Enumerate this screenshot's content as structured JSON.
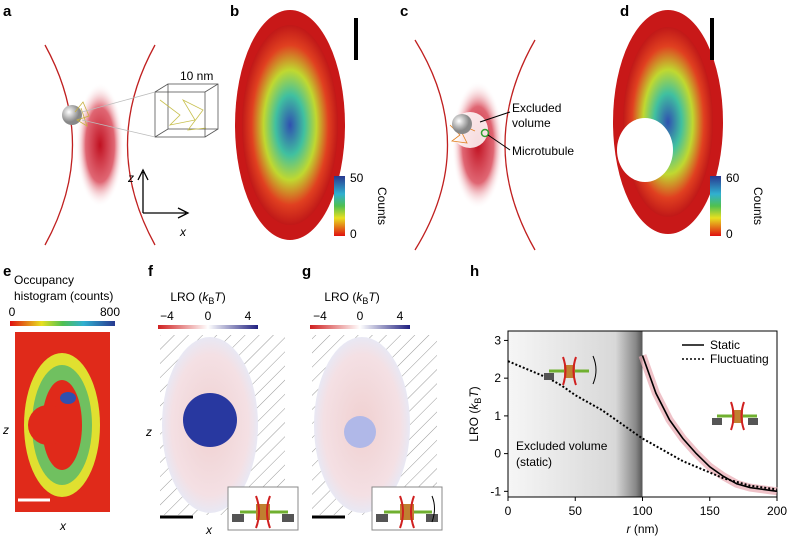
{
  "panels": {
    "a": {
      "label": "a",
      "scale": "10 nm",
      "z": "z",
      "x": "x"
    },
    "b": {
      "label": "b",
      "colorbar": [
        "50",
        "0"
      ],
      "colorbar_title": "Counts"
    },
    "c": {
      "label": "c",
      "excluded": [
        "Excluded",
        "volume"
      ],
      "microtubule": "Microtubule"
    },
    "d": {
      "label": "d",
      "colorbar": [
        "60",
        "0"
      ],
      "colorbar_title": "Counts"
    },
    "e": {
      "label": "e",
      "title": [
        "Occupancy",
        "histogram (counts)"
      ],
      "colorbar": [
        "0",
        "800"
      ],
      "z": "z",
      "x": "x"
    },
    "f": {
      "label": "f",
      "title": [
        "LRO (",
        "k",
        "B",
        "T",
        ")"
      ],
      "colorbar": [
        "−4",
        "0",
        "4"
      ],
      "z": "z",
      "x": "x"
    },
    "g": {
      "label": "g",
      "title": [
        "LRO (",
        "k",
        "B",
        "T",
        ")"
      ],
      "colorbar": [
        "−4",
        "0",
        "4"
      ]
    },
    "h": {
      "label": "h"
    }
  },
  "chart_data": {
    "type": "line",
    "x": [
      0,
      10,
      20,
      30,
      40,
      50,
      60,
      70,
      80,
      90,
      100,
      110,
      120,
      130,
      140,
      150,
      160,
      170,
      180,
      190,
      200
    ],
    "series": [
      {
        "name": "Static",
        "color": "#000000",
        "dash": "solid",
        "values": [
          null,
          null,
          null,
          null,
          null,
          null,
          null,
          null,
          null,
          null,
          2.6,
          1.6,
          0.9,
          0.4,
          0.0,
          -0.35,
          -0.6,
          -0.8,
          -0.9,
          -0.95,
          -1.0
        ]
      },
      {
        "name": "Fluctuating",
        "color": "#000000",
        "dash": "dotted",
        "values": [
          2.45,
          2.3,
          2.15,
          2.0,
          1.8,
          1.55,
          1.35,
          1.15,
          0.9,
          0.65,
          0.4,
          0.2,
          0.0,
          -0.2,
          -0.35,
          -0.5,
          -0.65,
          -0.75,
          -0.85,
          -0.9,
          -0.95
        ]
      }
    ],
    "xlim": [
      0,
      200
    ],
    "xticks": [
      0,
      50,
      100,
      150,
      200
    ],
    "ylim": [
      -1.15,
      3.25
    ],
    "yticks": [
      -1,
      0,
      1,
      2,
      3
    ],
    "x_label": [
      "r",
      "(nm)"
    ],
    "y_label": [
      "LRO (",
      "k",
      "B",
      "T",
      ")"
    ],
    "annotations": [
      "Excluded volume",
      "(static)"
    ],
    "legend": "top-right"
  }
}
